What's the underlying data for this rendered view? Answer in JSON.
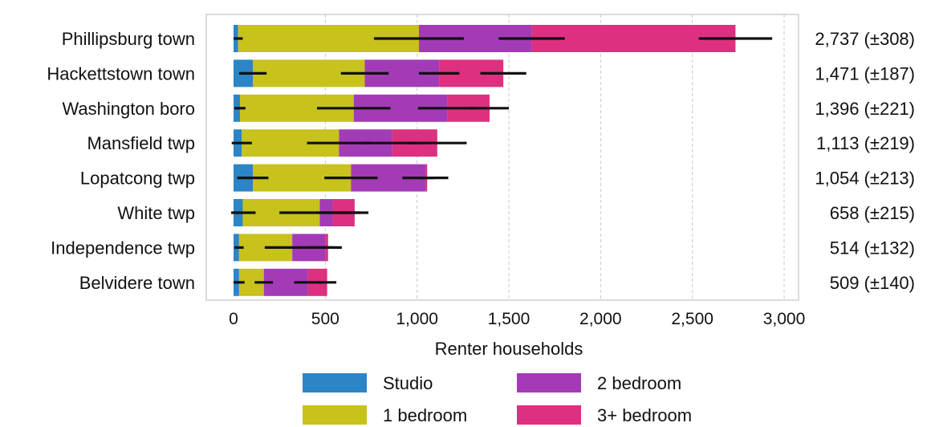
{
  "chart_data": {
    "type": "bar",
    "orientation": "horizontal",
    "stacked": true,
    "xlabel": "Renter households",
    "xlim": [
      0,
      3000
    ],
    "xticks": [
      0,
      500,
      1000,
      1500,
      2000,
      2500,
      3000
    ],
    "xtick_labels": [
      "0",
      "500",
      "1,000",
      "1,500",
      "2,000",
      "2,500",
      "3,000"
    ],
    "grid": "vertical",
    "legend_position": "bottom",
    "categories": [
      "Phillipsburg town",
      "Hackettstown town",
      "Washington boro",
      "Mansfield twp",
      "Lopatcong twp",
      "White twp",
      "Independence twp",
      "Belvidere town"
    ],
    "series": [
      {
        "name": "Studio",
        "color": "#2b85c6",
        "values": [
          25,
          105,
          35,
          45,
          105,
          50,
          30,
          30
        ],
        "errors": [
          25,
          75,
          30,
          55,
          85,
          70,
          25,
          30
        ]
      },
      {
        "name": "1 bedroom",
        "color": "#c7c21c",
        "values": [
          985,
          610,
          620,
          530,
          535,
          420,
          290,
          135
        ],
        "errors": [
          245,
          130,
          200,
          175,
          145,
          220,
          150,
          50
        ]
      },
      {
        "name": "2 bedroom",
        "color": "#a33bb6",
        "values": [
          615,
          405,
          510,
          290,
          405,
          70,
          180,
          240
        ],
        "errors": [
          180,
          110,
          160,
          165,
          125,
          90,
          90,
          75
        ]
      },
      {
        "name": "3+ bedroom",
        "color": "#de3081",
        "values": [
          1110,
          350,
          230,
          245,
          10,
          120,
          15,
          105
        ],
        "errors": [
          200,
          125,
          105,
          160,
          40,
          75,
          30,
          50
        ]
      }
    ],
    "totals": [
      2737,
      1471,
      1396,
      1113,
      1054,
      658,
      514,
      509
    ],
    "total_labels": [
      "2,737 (±308)",
      "1,471 (±187)",
      "1,396 (±221)",
      "1,113 (±219)",
      "1,054 (±213)",
      "658 (±215)",
      "514 (±132)",
      "509 (±140)"
    ]
  }
}
